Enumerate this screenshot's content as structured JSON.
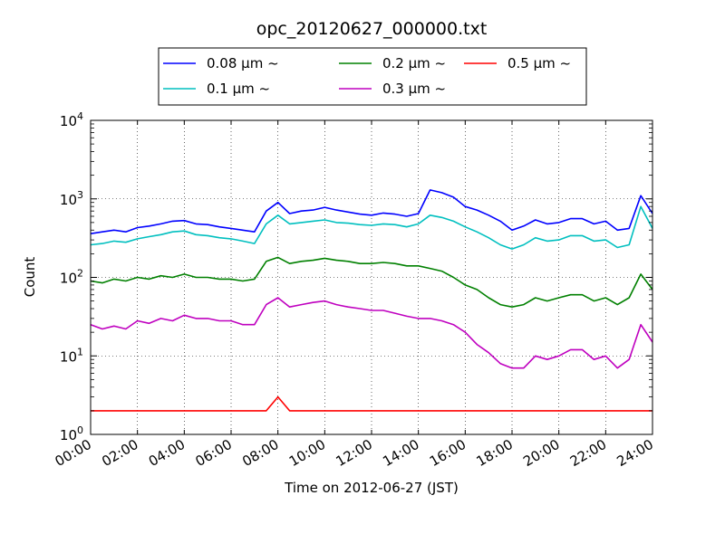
{
  "chart_data": {
    "type": "line",
    "title": "opc_20120627_000000.txt",
    "xlabel": "Time on 2012-06-27 (JST)",
    "ylabel": "Count",
    "y_scale": "log",
    "ylim": [
      1,
      10000
    ],
    "xlim": [
      "00:00",
      "24:00"
    ],
    "grid": true,
    "legend_position": "top-center",
    "x_ticks": [
      "00:00",
      "02:00",
      "04:00",
      "06:00",
      "08:00",
      "10:00",
      "12:00",
      "14:00",
      "16:00",
      "18:00",
      "20:00",
      "22:00",
      "24:00"
    ],
    "y_ticks": [
      {
        "value": 1,
        "base": "10",
        "exp": "0"
      },
      {
        "value": 10,
        "base": "10",
        "exp": "1"
      },
      {
        "value": 100,
        "base": "10",
        "exp": "2"
      },
      {
        "value": 1000,
        "base": "10",
        "exp": "3"
      },
      {
        "value": 10000,
        "base": "10",
        "exp": "4"
      }
    ],
    "x": [
      "00:00",
      "00:30",
      "01:00",
      "01:30",
      "02:00",
      "02:30",
      "03:00",
      "03:30",
      "04:00",
      "04:30",
      "05:00",
      "05:30",
      "06:00",
      "06:30",
      "07:00",
      "07:30",
      "08:00",
      "08:30",
      "09:00",
      "09:30",
      "10:00",
      "10:30",
      "11:00",
      "11:30",
      "12:00",
      "12:30",
      "13:00",
      "13:30",
      "14:00",
      "14:30",
      "15:00",
      "15:30",
      "16:00",
      "16:30",
      "17:00",
      "17:30",
      "18:00",
      "18:30",
      "19:00",
      "19:30",
      "20:00",
      "20:30",
      "21:00",
      "21:30",
      "22:00",
      "22:30",
      "23:00",
      "23:30",
      "24:00"
    ],
    "series": [
      {
        "name": "0.08 μm ~",
        "color": "#0000ff",
        "values": [
          360,
          380,
          400,
          380,
          430,
          450,
          480,
          520,
          530,
          480,
          470,
          440,
          420,
          400,
          380,
          700,
          900,
          650,
          700,
          720,
          780,
          720,
          680,
          640,
          620,
          660,
          640,
          600,
          650,
          1300,
          1200,
          1050,
          800,
          720,
          620,
          520,
          400,
          450,
          540,
          480,
          500,
          560,
          560,
          480,
          520,
          400,
          420,
          1100,
          650
        ]
      },
      {
        "name": "0.1 μm ~",
        "color": "#00bfbf",
        "values": [
          260,
          270,
          290,
          280,
          310,
          330,
          350,
          380,
          390,
          350,
          340,
          320,
          310,
          290,
          270,
          480,
          620,
          480,
          500,
          520,
          540,
          500,
          490,
          470,
          460,
          480,
          470,
          440,
          480,
          620,
          580,
          520,
          440,
          380,
          320,
          260,
          230,
          260,
          320,
          290,
          300,
          340,
          340,
          290,
          300,
          240,
          260,
          800,
          420
        ]
      },
      {
        "name": "0.2 μm ~",
        "color": "#008000",
        "values": [
          90,
          85,
          95,
          90,
          100,
          95,
          105,
          100,
          110,
          100,
          100,
          95,
          95,
          90,
          95,
          160,
          180,
          150,
          160,
          165,
          175,
          165,
          160,
          150,
          150,
          155,
          150,
          140,
          140,
          130,
          120,
          100,
          80,
          70,
          55,
          45,
          42,
          45,
          55,
          50,
          55,
          60,
          60,
          50,
          55,
          45,
          55,
          110,
          70
        ]
      },
      {
        "name": "0.3 μm ~",
        "color": "#bf00bf",
        "values": [
          25,
          22,
          24,
          22,
          28,
          26,
          30,
          28,
          33,
          30,
          30,
          28,
          28,
          25,
          25,
          45,
          55,
          42,
          45,
          48,
          50,
          45,
          42,
          40,
          38,
          38,
          35,
          32,
          30,
          30,
          28,
          25,
          20,
          14,
          11,
          8,
          7,
          7,
          10,
          9,
          10,
          12,
          12,
          9,
          10,
          7,
          9,
          25,
          15
        ]
      },
      {
        "name": "0.5 μm ~",
        "color": "#ff0000",
        "values": [
          2,
          2,
          2,
          2,
          2,
          2,
          2,
          2,
          2,
          2,
          2,
          2,
          2,
          2,
          2,
          2,
          3,
          2,
          2,
          2,
          2,
          2,
          2,
          2,
          2,
          2,
          2,
          2,
          2,
          2,
          2,
          2,
          2,
          2,
          2,
          2,
          2,
          2,
          2,
          2,
          2,
          2,
          2,
          2,
          2,
          2,
          2,
          2,
          2
        ]
      }
    ]
  }
}
